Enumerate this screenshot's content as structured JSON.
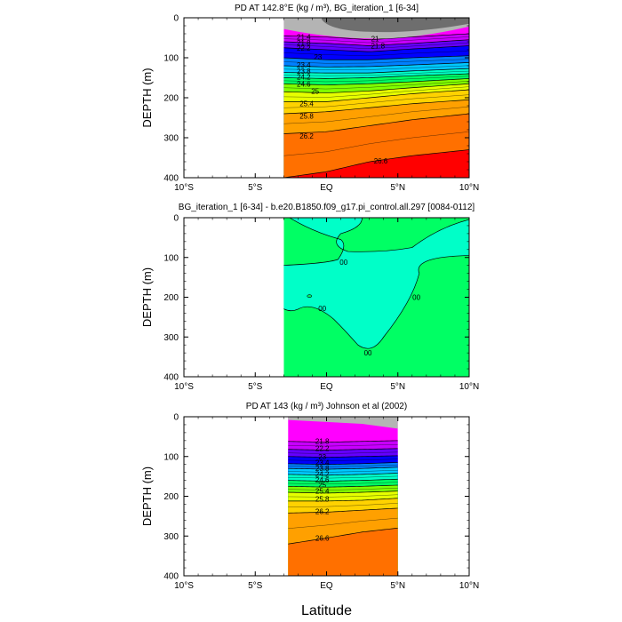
{
  "figure": {
    "xlabel": "Latitude",
    "colors": {
      "background": "#ffffff",
      "frame": "#000000",
      "land_gray": "#b4b4b4",
      "dark_gray": "#6e6e6e"
    }
  },
  "chart_data": [
    {
      "type": "contour",
      "title": "PD AT 142.8°E (kg / m³), BG_iteration_1 [6-34]",
      "xlabel": "",
      "ylabel": "DEPTH (m)",
      "xlim": [
        -10,
        10
      ],
      "ylim": [
        400,
        0
      ],
      "xticks": [
        -10,
        -5,
        0,
        5,
        10
      ],
      "xtick_labels": [
        "10°S",
        "5°S",
        "EQ",
        "5°N",
        "10°N"
      ],
      "yticks": [
        0,
        100,
        200,
        300,
        400
      ],
      "ytick_labels": [
        "0",
        "100",
        "200",
        "300",
        "400"
      ],
      "data_x_range": [
        -3.0,
        10.0
      ],
      "contour_levels": [
        21.4,
        21.8,
        22.2,
        23.0,
        23.4,
        23.8,
        24.2,
        24.6,
        25.0,
        25.4,
        25.8,
        26.2,
        26.6
      ],
      "contour_labels": [
        "21.4",
        "21.8",
        "22.2",
        "23",
        "23.4",
        "23.8",
        "24.2",
        "24.6",
        "25",
        "25.4",
        "25.8",
        "26.2",
        "26.6",
        "21",
        "21.8"
      ],
      "isopycnal_depths": {
        "latitudes": [
          -3,
          0,
          3,
          6,
          10
        ],
        "levels": [
          {
            "value": 21.4,
            "depth": [
              45,
              48,
              55,
              48,
              40
            ]
          },
          {
            "value": 21.8,
            "depth": [
              60,
              64,
              70,
              64,
              55
            ]
          },
          {
            "value": 22.2,
            "depth": [
              75,
              80,
              85,
              78,
              70
            ]
          },
          {
            "value": 23.0,
            "depth": [
              100,
              105,
              105,
              100,
              95
            ]
          },
          {
            "value": 23.4,
            "depth": [
              120,
              123,
              122,
              118,
              112
            ]
          },
          {
            "value": 23.8,
            "depth": [
              137,
              138,
              138,
              133,
              127
            ]
          },
          {
            "value": 24.2,
            "depth": [
              150,
              152,
              150,
              145,
              140
            ]
          },
          {
            "value": 24.6,
            "depth": [
              165,
              168,
              165,
              160,
              152
            ]
          },
          {
            "value": 25.0,
            "depth": [
              185,
              188,
              183,
              175,
              165
            ]
          },
          {
            "value": 25.4,
            "depth": [
              210,
              210,
              200,
              190,
              180
            ]
          },
          {
            "value": 25.8,
            "depth": [
              240,
              235,
              225,
              215,
              205
            ]
          },
          {
            "value": 26.2,
            "depth": [
              290,
              285,
              270,
              255,
              240
            ]
          },
          {
            "value": 26.6,
            "depth": [
              400,
              385,
              360,
              345,
              330
            ]
          }
        ]
      },
      "colorbands": [
        "#ff00ff",
        "#c800ff",
        "#6400ff",
        "#0000ff",
        "#0080ff",
        "#00c8ff",
        "#00ffc8",
        "#00ff64",
        "#80ff00",
        "#e6ff00",
        "#ffd200",
        "#ffa000",
        "#ff7000",
        "#ff0000",
        "#c80000"
      ],
      "surface_colors": {
        "light": "#b4b4b4",
        "dark": "#6e6e6e"
      }
    },
    {
      "type": "contour",
      "title": "BG_iteration_1 [6-34] - b.e20.B1850.f09_g17.pi_control.all.297 [0084-0112]",
      "xlabel": "",
      "ylabel": "DEPTH (m)",
      "xlim": [
        -10,
        10
      ],
      "ylim": [
        400,
        0
      ],
      "xticks": [
        -10,
        -5,
        0,
        5,
        10
      ],
      "xtick_labels": [
        "10°S",
        "5°S",
        "EQ",
        "5°N",
        "10°N"
      ],
      "yticks": [
        0,
        100,
        200,
        300,
        400
      ],
      "ytick_labels": [
        "0",
        "100",
        "200",
        "300",
        "400"
      ],
      "data_x_range": [
        -3.0,
        10.0
      ],
      "contour_levels": [
        0.0
      ],
      "contour_labels": [
        "00",
        "00",
        "00",
        "00"
      ],
      "region_colors": {
        "positive": "#00ffc8",
        "negative": "#00ff64"
      }
    },
    {
      "type": "contour",
      "title": "PD AT 143 (kg / m³) Johnson et al (2002)",
      "xlabel": "Latitude",
      "ylabel": "DEPTH (m)",
      "xlim": [
        -10,
        10
      ],
      "ylim": [
        400,
        0
      ],
      "xticks": [
        -10,
        -5,
        0,
        5,
        10
      ],
      "xtick_labels": [
        "10°S",
        "5°S",
        "EQ",
        "5°N",
        "10°N"
      ],
      "yticks": [
        0,
        100,
        200,
        300,
        400
      ],
      "ytick_labels": [
        "0",
        "100",
        "200",
        "300",
        "400"
      ],
      "data_x_range": [
        -2.7,
        5.0
      ],
      "contour_levels": [
        21.8,
        22.2,
        22.6,
        23.0,
        23.4,
        23.8,
        24.2,
        24.6,
        25.0,
        25.4,
        25.8,
        26.2,
        26.6
      ],
      "contour_labels": [
        "21.8",
        "22.2",
        "23",
        "23.4",
        "23.8",
        "24.2",
        "24.6",
        "25",
        "25.4",
        "25.8",
        "26.2",
        "26.6"
      ],
      "isopycnal_depths": {
        "latitudes": [
          -2.7,
          0,
          2.5,
          5
        ],
        "levels": [
          {
            "value": 21.8,
            "depth": [
              62,
              64,
              62,
              60
            ]
          },
          {
            "value": 22.2,
            "depth": [
              82,
              84,
              82,
              80
            ]
          },
          {
            "value": 23.0,
            "depth": [
              100,
              102,
              100,
              98
            ]
          },
          {
            "value": 23.4,
            "depth": [
              118,
              120,
              118,
              115
            ]
          },
          {
            "value": 23.8,
            "depth": [
              130,
              132,
              130,
              127
            ]
          },
          {
            "value": 24.2,
            "depth": [
              145,
              147,
              145,
              142
            ]
          },
          {
            "value": 24.6,
            "depth": [
              160,
              162,
              160,
              157
            ]
          },
          {
            "value": 25.0,
            "depth": [
              175,
              177,
              175,
              172
            ]
          },
          {
            "value": 25.4,
            "depth": [
              190,
              192,
              190,
              187
            ]
          },
          {
            "value": 25.8,
            "depth": [
              212,
              212,
              210,
              205
            ]
          },
          {
            "value": 26.2,
            "depth": [
              242,
              240,
              235,
              230
            ]
          },
          {
            "value": 26.6,
            "depth": [
              320,
              305,
              290,
              280
            ]
          }
        ]
      },
      "colorbands": [
        "#ff00ff",
        "#c800ff",
        "#6400ff",
        "#0000ff",
        "#0080ff",
        "#00c8ff",
        "#00ffc8",
        "#00ff64",
        "#80ff00",
        "#e6ff00",
        "#ffd200",
        "#ffa000",
        "#ff7000",
        "#ff0000",
        "#c80000"
      ],
      "surface_colors": {
        "light": "#b4b4b4",
        "dark": "#6e6e6e"
      }
    }
  ]
}
